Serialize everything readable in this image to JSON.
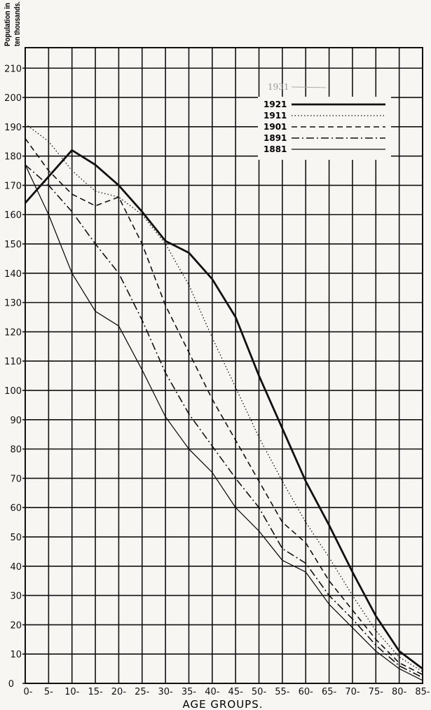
{
  "chart_data": {
    "type": "line",
    "title": "",
    "ylabel": "Population in ten thousands.",
    "xlabel": "AGE GROUPS.",
    "categories": [
      "0-",
      "5-",
      "10-",
      "15-",
      "20-",
      "25-",
      "30-",
      "35-",
      "40-",
      "45-",
      "50-",
      "55-",
      "60-",
      "65-",
      "70-",
      "75-",
      "80-",
      "85-"
    ],
    "yticks": [
      0,
      10,
      20,
      30,
      40,
      50,
      60,
      70,
      80,
      90,
      100,
      110,
      120,
      130,
      140,
      150,
      160,
      170,
      180,
      190,
      200,
      210
    ],
    "ylim": [
      0,
      217
    ],
    "grid": true,
    "legend_placement": "top-right",
    "annotation": "1931",
    "series": [
      {
        "name": "1921",
        "style": "solid-thick",
        "values": [
          164,
          173,
          182,
          177,
          170,
          161,
          151,
          147,
          138,
          125,
          105,
          87,
          69,
          54,
          38,
          23,
          11,
          5
        ]
      },
      {
        "name": "1911",
        "style": "dotted",
        "values": [
          191,
          185,
          175,
          168,
          166,
          160,
          150,
          136,
          118,
          101,
          84,
          69,
          55,
          43,
          30,
          18,
          9,
          4
        ]
      },
      {
        "name": "1901",
        "style": "dashed",
        "values": [
          186,
          175,
          167,
          163,
          166,
          150,
          129,
          113,
          97,
          83,
          69,
          55,
          48,
          35,
          25,
          15,
          7,
          3
        ]
      },
      {
        "name": "1891",
        "style": "dash-dot",
        "values": [
          177,
          170,
          161,
          150,
          140,
          124,
          106,
          92,
          81,
          70,
          60,
          46,
          41,
          30,
          22,
          13,
          6,
          2
        ]
      },
      {
        "name": "1881",
        "style": "solid-thin",
        "values": [
          177,
          160,
          140,
          127,
          122,
          107,
          91,
          80,
          72,
          60,
          52,
          42,
          38,
          27,
          19,
          11,
          5,
          1
        ]
      }
    ],
    "colors": {
      "ink": "#111111",
      "paper": "#f7f6f2",
      "pencil": "#aaaaaa"
    }
  }
}
